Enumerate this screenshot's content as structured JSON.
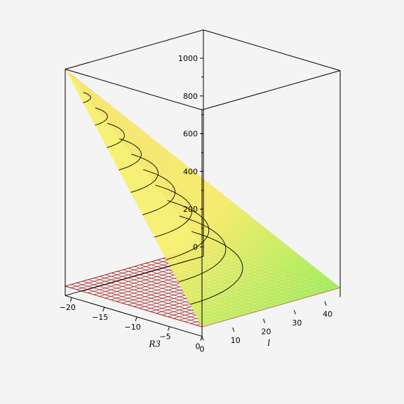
{
  "chart_data": {
    "type": "surface3d",
    "title": "",
    "axes": {
      "x": {
        "label": "R3",
        "range": [
          -21,
          0
        ],
        "ticks": [
          -20,
          -15,
          -10,
          -5,
          0
        ]
      },
      "y": {
        "label": "l",
        "range": [
          0,
          45
        ],
        "ticks": [
          0,
          10,
          20,
          30,
          40
        ]
      },
      "z": {
        "label": "",
        "range": [
          -50,
          1150
        ],
        "ticks": [
          0,
          200,
          400,
          600,
          800,
          1000
        ]
      }
    },
    "box": true,
    "surface_corners": [
      {
        "R3": -21,
        "l": 0,
        "z": 1150
      },
      {
        "R3": 0,
        "l": 0,
        "z": 0
      },
      {
        "R3": 0,
        "l": 45,
        "z": 0
      },
      {
        "R3": -21,
        "l": 45,
        "z": 0
      }
    ],
    "contour_levels": [
      0,
      100,
      200,
      300,
      400,
      500,
      600,
      700,
      800,
      900,
      1000
    ],
    "reference_plane": {
      "z": 0,
      "color": "#a52a2a"
    },
    "colors": {
      "background": "#f4f4f4",
      "surface_high": "#e36ad8",
      "surface_mid": "#f0a9b4",
      "surface_low_a": "#f7f06b",
      "surface_low_b": "#92ee5c",
      "contour": "#000000",
      "plane": "#a52a2a"
    }
  }
}
